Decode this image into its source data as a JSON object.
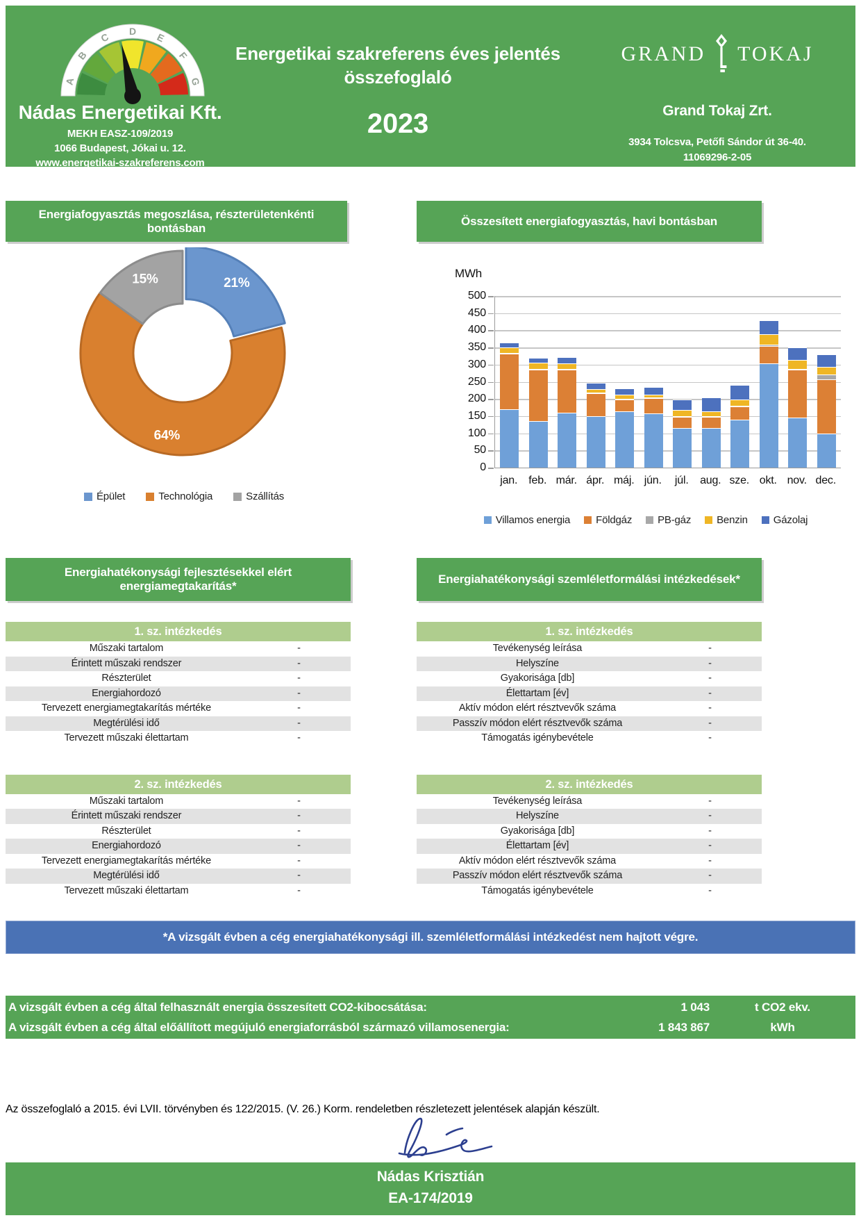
{
  "header": {
    "logo": {
      "gauge_letters": [
        "A",
        "B",
        "C",
        "D",
        "E",
        "F",
        "G"
      ],
      "gauge_colors": [
        "#3D8C40",
        "#63A83C",
        "#A6C534",
        "#F0E52C",
        "#F0A81E",
        "#E46A1E",
        "#D42A1A"
      ]
    },
    "company": "Nádas Energetikai Kft.",
    "registration": "MEKH EASZ-109/2019",
    "address": "1066 Budapest, Jókai u. 12.",
    "website": "www.energetikai-szakreferens.com",
    "title_line1": "Energetikai szakreferens éves jelentés",
    "title_line2": "összefoglaló",
    "year": "2023",
    "client": {
      "logo_left": "GRAND",
      "logo_right": "TOKAJ",
      "name": "Grand Tokaj Zrt.",
      "address": "3934 Tolcsva, Petőfi Sándor út 36-40.",
      "tax_id": "11069296-2-05"
    }
  },
  "pie_section": {
    "title": "Energiafogyasztás megoszlása, részterületenkénti bontásban"
  },
  "bar_section": {
    "title": "Összesített energiafogyasztás, havi bontásban"
  },
  "chart_data": [
    {
      "type": "pie",
      "subtype": "donut",
      "title": "Energiafogyasztás megoszlása, részterületenkénti bontásban",
      "labels": [
        "Épület",
        "Technológia",
        "Szállítás"
      ],
      "values": [
        21,
        64,
        15
      ],
      "value_labels": [
        "21%",
        "64%",
        "15%"
      ],
      "colors": [
        "#6B96CE",
        "#D9802F",
        "#A3A3A3"
      ],
      "border_colors": [
        "#5580B8",
        "#B96A24",
        "#8C8C8C"
      ],
      "hole_ratio": 0.48,
      "legend_position": "bottom"
    },
    {
      "type": "bar",
      "stacked": true,
      "title": "Összesített energiafogyasztás, havi bontásban",
      "ylabel": "MWh",
      "ylim": [
        0,
        500
      ],
      "ytick_step": 50,
      "grid": true,
      "legend_position": "bottom",
      "categories": [
        "jan.",
        "feb.",
        "már.",
        "ápr.",
        "máj.",
        "jún.",
        "júl.",
        "aug.",
        "sze.",
        "okt.",
        "nov.",
        "dec."
      ],
      "series": [
        {
          "name": "Villamos energia",
          "color": "#6FA0D8",
          "values": [
            170,
            135,
            160,
            150,
            165,
            158,
            115,
            115,
            140,
            303,
            146,
            99
          ]
        },
        {
          "name": "Földgáz",
          "color": "#DC8035",
          "values": [
            163,
            150,
            125,
            67,
            33,
            45,
            32,
            33,
            38,
            52,
            140,
            158
          ]
        },
        {
          "name": "PB-gáz",
          "color": "#A8A8A8",
          "values": [
            2,
            3,
            2,
            2,
            2,
            2,
            2,
            2,
            2,
            3,
            2,
            15
          ]
        },
        {
          "name": "Benzin",
          "color": "#EFB625",
          "values": [
            15,
            17,
            16,
            9,
            13,
            8,
            20,
            15,
            18,
            30,
            26,
            21
          ]
        },
        {
          "name": "Gázolaj",
          "color": "#4D71BE",
          "values": [
            15,
            15,
            19,
            18,
            18,
            21,
            29,
            39,
            42,
            42,
            36,
            37
          ]
        }
      ]
    }
  ],
  "tables": {
    "left": {
      "banner": "Energiahatékonysági fejlesztésekkel elért energiamegtakarítás*",
      "measures": [
        {
          "title": "1. sz. intézkedés",
          "rows": [
            {
              "label": "Műszaki tartalom",
              "value": "-"
            },
            {
              "label": "Érintett műszaki rendszer",
              "value": "-"
            },
            {
              "label": "Részterület",
              "value": "-"
            },
            {
              "label": "Energiahordozó",
              "value": "-"
            },
            {
              "label": "Tervezett energiamegtakarítás mértéke",
              "value": "-"
            },
            {
              "label": "Megtérülési idő",
              "value": "-"
            },
            {
              "label": "Tervezett műszaki élettartam",
              "value": "-"
            }
          ]
        },
        {
          "title": "2. sz. intézkedés",
          "rows": [
            {
              "label": "Műszaki tartalom",
              "value": "-"
            },
            {
              "label": "Érintett műszaki rendszer",
              "value": "-"
            },
            {
              "label": "Részterület",
              "value": "-"
            },
            {
              "label": "Energiahordozó",
              "value": "-"
            },
            {
              "label": "Tervezett energiamegtakarítás mértéke",
              "value": "-"
            },
            {
              "label": "Megtérülési idő",
              "value": "-"
            },
            {
              "label": "Tervezett műszaki élettartam",
              "value": "-"
            }
          ]
        }
      ]
    },
    "right": {
      "banner": "Energiahatékonysági szemléletformálási intézkedések*",
      "measures": [
        {
          "title": "1. sz. intézkedés",
          "rows": [
            {
              "label": "Tevékenység leírása",
              "value": "-"
            },
            {
              "label": "Helyszíne",
              "value": "-"
            },
            {
              "label": "Gyakorisága [db]",
              "value": "-"
            },
            {
              "label": "Élettartam [év]",
              "value": "-"
            },
            {
              "label": "Aktív módon elért résztvevők száma",
              "value": "-"
            },
            {
              "label": "Passzív módon elért résztvevők száma",
              "value": "-"
            },
            {
              "label": "Támogatás igénybevétele",
              "value": "-"
            }
          ]
        },
        {
          "title": "2. sz. intézkedés",
          "rows": [
            {
              "label": "Tevékenység leírása",
              "value": "-"
            },
            {
              "label": "Helyszíne",
              "value": "-"
            },
            {
              "label": "Gyakorisága [db]",
              "value": "-"
            },
            {
              "label": "Élettartam [év]",
              "value": "-"
            },
            {
              "label": "Aktív módon elért résztvevők száma",
              "value": "-"
            },
            {
              "label": "Passzív módon elért résztvevők száma",
              "value": "-"
            },
            {
              "label": "Támogatás igénybevétele",
              "value": "-"
            }
          ]
        }
      ]
    }
  },
  "note_banner": "*A vizsgált évben a cég energiahatékonysági ill. szemléletformálási intézkedést nem hajtott végre.",
  "summary": {
    "rows": [
      {
        "label": "A vizsgált évben a cég által felhasznált energia összesített CO2-kibocsátása:",
        "value": "1 043",
        "unit": "t CO2 ekv."
      },
      {
        "label": "A vizsgált évben a cég által előállított megújuló energiaforrásból származó villamosenergia:",
        "value": "1 843 867",
        "unit": "kWh"
      }
    ]
  },
  "footer": {
    "legal": "Az összefoglaló a 2015. évi LVII. törvényben és 122/2015. (V. 26.) Korm. rendeletben részletezett jelentések alapján készült.",
    "signer": "Nádas Krisztián",
    "signer_id": "EA-174/2019"
  },
  "colors": {
    "green": "#56A456",
    "light_green": "#AFCD8E",
    "row_gray": "#E2E2E2",
    "note_blue": "#4A72B5"
  }
}
